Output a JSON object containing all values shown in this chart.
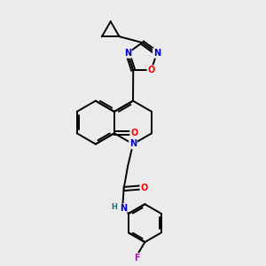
{
  "background_color": "#ebebeb",
  "bond_color": "#000000",
  "atom_colors": {
    "N": "#0000cc",
    "O": "#ff0000",
    "F": "#cc00cc",
    "H": "#008080",
    "C": "#000000"
  },
  "figsize": [
    3.0,
    3.0
  ],
  "dpi": 100
}
